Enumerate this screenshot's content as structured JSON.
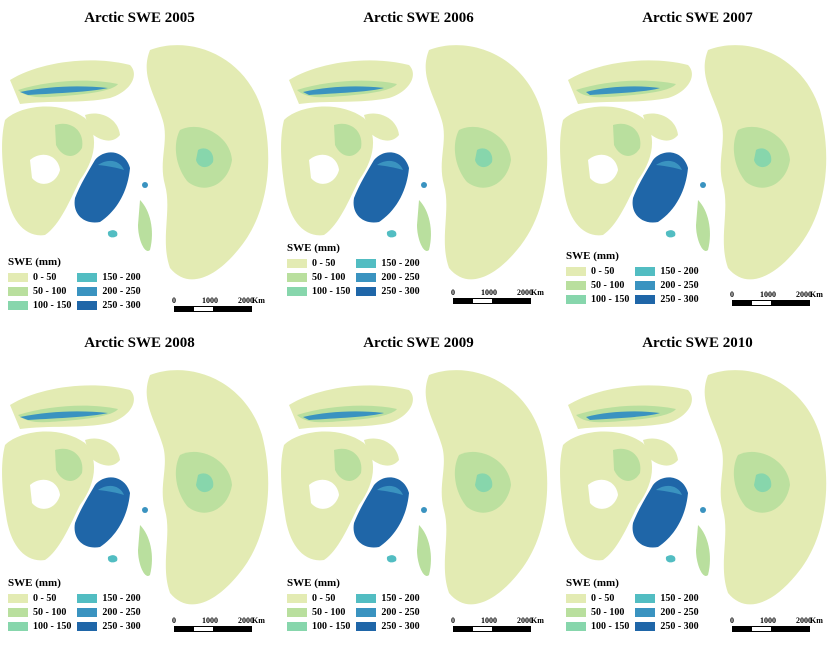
{
  "legend": {
    "title": "SWE (mm)",
    "classes": [
      {
        "label": "0 - 50",
        "color": "#e3ebb3"
      },
      {
        "label": "50 - 100",
        "color": "#b9df9e"
      },
      {
        "label": "100 - 150",
        "color": "#87d6ac"
      },
      {
        "label": "150 - 200",
        "color": "#52bdc2"
      },
      {
        "label": "200 - 250",
        "color": "#3a93c0"
      },
      {
        "label": "250 - 300",
        "color": "#1f66a8"
      }
    ]
  },
  "scalebar": {
    "ticks": [
      "0",
      "1000",
      "2000"
    ],
    "unit": "Km"
  },
  "panels": [
    {
      "title": "Arctic SWE 2005"
    },
    {
      "title": "Arctic SWE 2006"
    },
    {
      "title": "Arctic SWE 2007"
    },
    {
      "title": "Arctic SWE 2008"
    },
    {
      "title": "Arctic SWE 2009"
    },
    {
      "title": "Arctic SWE 2010"
    }
  ]
}
